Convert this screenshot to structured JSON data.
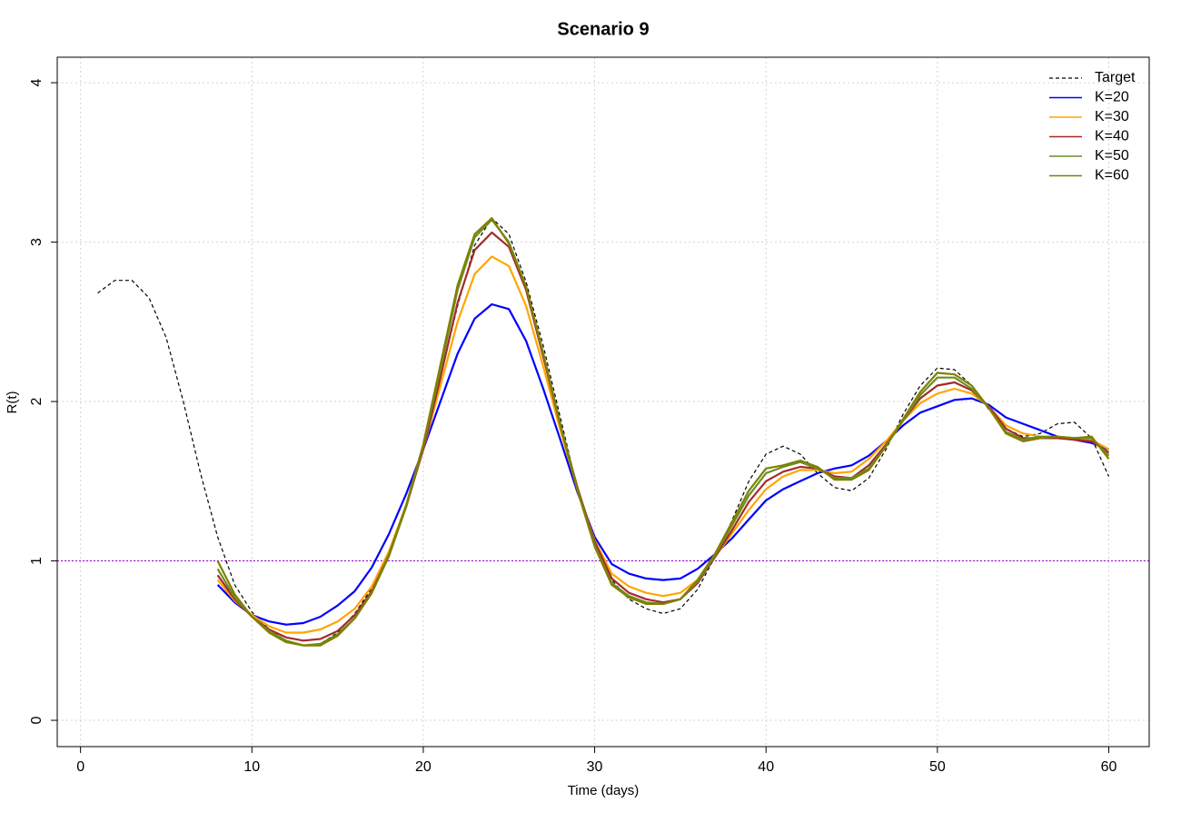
{
  "chart_data": {
    "type": "line",
    "title": "Scenario 9",
    "x_label": "Time (days)",
    "y_label": "R(t)",
    "x": [
      1,
      2,
      3,
      4,
      5,
      6,
      7,
      8,
      9,
      10,
      11,
      12,
      13,
      14,
      15,
      16,
      17,
      18,
      19,
      20,
      21,
      22,
      23,
      24,
      25,
      26,
      27,
      28,
      29,
      30,
      31,
      32,
      33,
      34,
      35,
      36,
      37,
      38,
      39,
      40,
      41,
      42,
      43,
      44,
      45,
      46,
      47,
      48,
      49,
      50,
      51,
      52,
      53,
      54,
      55,
      56,
      57,
      58,
      59,
      60
    ],
    "series": [
      {
        "name": "Target",
        "color": "#000000",
        "dashed": true,
        "values": [
          2.68,
          2.76,
          2.76,
          2.65,
          2.4,
          2.0,
          1.55,
          1.15,
          0.85,
          0.68,
          0.57,
          0.5,
          0.47,
          0.48,
          0.55,
          0.67,
          0.83,
          1.05,
          1.35,
          1.72,
          2.15,
          2.6,
          2.98,
          3.15,
          3.05,
          2.75,
          2.35,
          1.9,
          1.45,
          1.1,
          0.88,
          0.76,
          0.7,
          0.67,
          0.7,
          0.82,
          1.02,
          1.25,
          1.5,
          1.67,
          1.72,
          1.67,
          1.55,
          1.46,
          1.44,
          1.52,
          1.7,
          1.92,
          2.1,
          2.21,
          2.2,
          2.1,
          1.95,
          1.83,
          1.78,
          1.8,
          1.86,
          1.87,
          1.77,
          1.53
        ]
      },
      {
        "name": "K=20",
        "color": "#0000ff",
        "values": [
          null,
          null,
          null,
          null,
          null,
          null,
          null,
          0.85,
          0.74,
          0.66,
          0.62,
          0.6,
          0.61,
          0.65,
          0.72,
          0.81,
          0.96,
          1.17,
          1.42,
          1.7,
          2.0,
          2.3,
          2.52,
          2.61,
          2.58,
          2.38,
          2.08,
          1.76,
          1.43,
          1.15,
          0.98,
          0.92,
          0.89,
          0.88,
          0.89,
          0.95,
          1.04,
          1.14,
          1.26,
          1.38,
          1.45,
          1.5,
          1.55,
          1.58,
          1.6,
          1.66,
          1.75,
          1.85,
          1.93,
          1.97,
          2.01,
          2.02,
          1.98,
          1.9,
          1.86,
          1.82,
          1.78,
          1.76,
          1.74,
          1.7
        ]
      },
      {
        "name": "K=30",
        "color": "#ffa500",
        "values": [
          null,
          null,
          null,
          null,
          null,
          null,
          null,
          0.88,
          0.75,
          0.66,
          0.59,
          0.55,
          0.55,
          0.57,
          0.62,
          0.7,
          0.84,
          1.06,
          1.35,
          1.7,
          2.1,
          2.5,
          2.8,
          2.91,
          2.85,
          2.6,
          2.22,
          1.82,
          1.45,
          1.13,
          0.92,
          0.84,
          0.8,
          0.78,
          0.8,
          0.88,
          1.02,
          1.17,
          1.32,
          1.45,
          1.53,
          1.57,
          1.57,
          1.55,
          1.56,
          1.64,
          1.75,
          1.88,
          1.99,
          2.05,
          2.08,
          2.05,
          1.97,
          1.85,
          1.8,
          1.78,
          1.77,
          1.77,
          1.76,
          1.7
        ]
      },
      {
        "name": "K=40",
        "color": "#a52a2a",
        "values": [
          null,
          null,
          null,
          null,
          null,
          null,
          null,
          0.91,
          0.76,
          0.65,
          0.57,
          0.52,
          0.5,
          0.51,
          0.56,
          0.66,
          0.81,
          1.04,
          1.34,
          1.7,
          2.15,
          2.62,
          2.95,
          3.06,
          2.97,
          2.7,
          2.28,
          1.85,
          1.46,
          1.12,
          0.89,
          0.8,
          0.76,
          0.74,
          0.76,
          0.86,
          1.02,
          1.19,
          1.37,
          1.5,
          1.56,
          1.59,
          1.58,
          1.53,
          1.52,
          1.6,
          1.73,
          1.88,
          2.02,
          2.1,
          2.12,
          2.07,
          1.97,
          1.83,
          1.77,
          1.77,
          1.77,
          1.76,
          1.75,
          1.68
        ]
      },
      {
        "name": "K=50",
        "color": "#6b8e23",
        "values": [
          null,
          null,
          null,
          null,
          null,
          null,
          null,
          0.95,
          0.77,
          0.65,
          0.56,
          0.5,
          0.47,
          0.48,
          0.54,
          0.64,
          0.8,
          1.03,
          1.34,
          1.72,
          2.2,
          2.7,
          3.03,
          3.14,
          3.0,
          2.72,
          2.3,
          1.86,
          1.45,
          1.1,
          0.86,
          0.78,
          0.74,
          0.73,
          0.76,
          0.87,
          1.03,
          1.22,
          1.41,
          1.55,
          1.59,
          1.62,
          1.58,
          1.52,
          1.52,
          1.58,
          1.72,
          1.88,
          2.04,
          2.15,
          2.15,
          2.08,
          1.96,
          1.81,
          1.76,
          1.78,
          1.78,
          1.77,
          1.77,
          1.66
        ]
      },
      {
        "name": "K=60",
        "color": "#808000",
        "values": [
          null,
          null,
          null,
          null,
          null,
          null,
          null,
          1.0,
          0.79,
          0.65,
          0.55,
          0.49,
          0.47,
          0.47,
          0.53,
          0.64,
          0.8,
          1.04,
          1.35,
          1.73,
          2.23,
          2.73,
          3.05,
          3.15,
          2.99,
          2.72,
          2.3,
          1.85,
          1.44,
          1.09,
          0.85,
          0.77,
          0.73,
          0.73,
          0.76,
          0.88,
          1.04,
          1.24,
          1.44,
          1.58,
          1.6,
          1.63,
          1.59,
          1.51,
          1.51,
          1.57,
          1.72,
          1.89,
          2.06,
          2.18,
          2.17,
          2.1,
          1.96,
          1.8,
          1.75,
          1.77,
          1.78,
          1.77,
          1.78,
          1.64
        ]
      }
    ],
    "hline": {
      "value": 1,
      "color": "#9400d3"
    },
    "xlim": [
      -1.36,
      62.36
    ],
    "xticks": [
      0,
      10,
      20,
      30,
      40,
      50,
      60
    ],
    "ylim": [
      -0.165,
      4.16
    ],
    "yticks": [
      0,
      1,
      2,
      3,
      4
    ],
    "grid": true,
    "legend": "top-right"
  }
}
